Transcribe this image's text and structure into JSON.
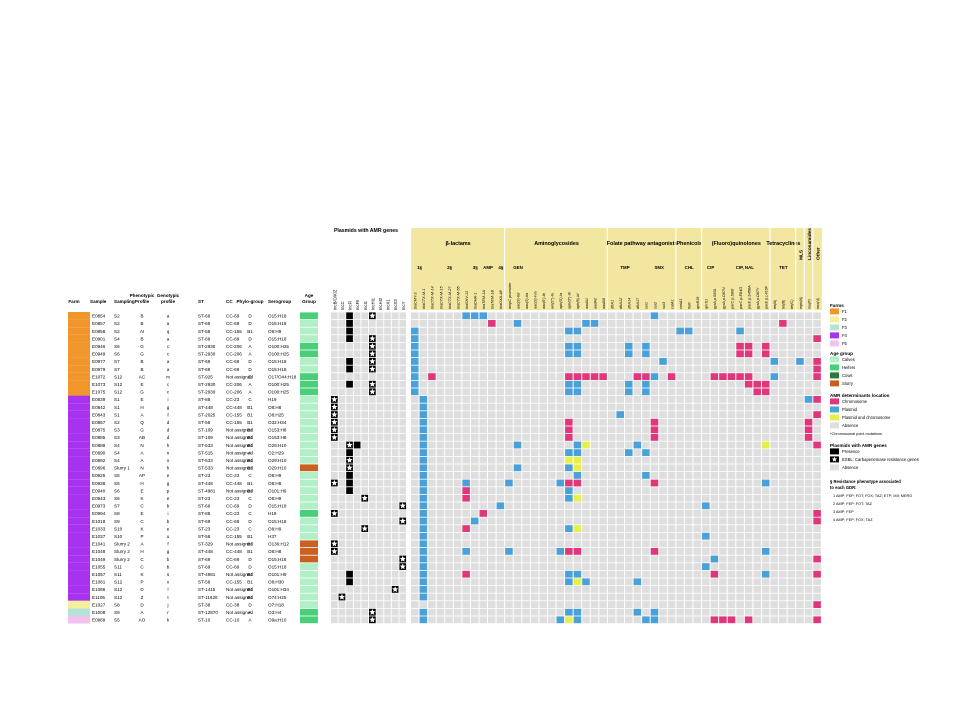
{
  "left_headers": [
    "Farm",
    "Sample",
    "Sampling",
    "Phenotypic Profile",
    "Genotypic profile",
    "ST",
    "CC",
    "Phylo-group",
    "Serogroup",
    "Age Group"
  ],
  "plasmid_header": "Plasmids with AMR genes",
  "plasmid_columns": [
    "IncB/O/K/Z",
    "IncC",
    "IncFI",
    "IncFII",
    "IncI1",
    "IncHI1",
    "IncHI2",
    "IncX1",
    "IncX3",
    "IncY"
  ],
  "class_headers": [
    {
      "label": "β-lactams",
      "cols": 11
    },
    {
      "label": "Aminoglycosides",
      "cols": 12
    },
    {
      "label": "Folate pathway antagonists",
      "cols": 8
    },
    {
      "label": "Phenicols",
      "cols": 3
    },
    {
      "label": "(Fluoro)quinolones",
      "cols": 8
    },
    {
      "label": "Tetracyclines",
      "cols": 3
    },
    {
      "label": "MLS",
      "cols": 1
    },
    {
      "label": "Lincosamides",
      "cols": 1
    },
    {
      "label": "Other",
      "cols": 1
    }
  ],
  "sub_headers": [
    {
      "label": "1§",
      "span": [
        0,
        2
      ]
    },
    {
      "label": "2§",
      "span": [
        2,
        7
      ]
    },
    {
      "label": "3§",
      "span": [
        7,
        8
      ]
    },
    {
      "label": "AMP",
      "span": [
        8,
        10
      ]
    },
    {
      "label": "4§",
      "span": [
        10,
        11
      ]
    },
    {
      "label": "GEN",
      "span": [
        11,
        14
      ]
    },
    {
      "label": "TMP",
      "span": [
        23,
        27
      ]
    },
    {
      "label": "SMX",
      "span": [
        27,
        31
      ]
    },
    {
      "label": "CHL",
      "span": [
        31,
        34
      ]
    },
    {
      "label": "CIP",
      "span": [
        34,
        36
      ]
    },
    {
      "label": "CIP, NAL",
      "span": [
        36,
        42
      ]
    },
    {
      "label": "TET",
      "span": [
        42,
        45
      ]
    }
  ],
  "gene_columns": [
    "blaCMY-2",
    "blaCTX-M-1",
    "blaCTX-M-14",
    "blaCTX-M-15",
    "blaCTX-M-27",
    "blaCTX-M-55",
    "blaSHV-12",
    "blaDHA-1",
    "blaTEM-1A",
    "blaTEM-1B",
    "blaOXA-48",
    "ampC promoter",
    "aac(3)-IId",
    "aac(3)-IIa",
    "aac(3)-IVa",
    "aac(6')-Ib",
    "ant(2'')-Ia",
    "aph(3')-Ia",
    "aph(3'')-Ib",
    "aph(6)-Id",
    "aadA1",
    "aadA2",
    "aadA5",
    "dfrA1",
    "dfrA12",
    "dfrA14",
    "dfrA17",
    "sul1",
    "sul2",
    "sul3",
    "catA1",
    "cmlA1",
    "floR",
    "qnrB19",
    "qnrS1",
    "gyrA p.S83L",
    "gyrA p.D87N",
    "parC p.S80I",
    "parC p.E84G",
    "parE p.S458A",
    "gyrA p.D87Y",
    "parE p.L416F",
    "tet(A)",
    "tet(B)",
    "tet(C)",
    "mph(A)",
    "lnu(F)",
    "mcr(4)"
  ],
  "legend": {
    "farms_title": "Farms",
    "farms": [
      {
        "label": "F1",
        "color": "#f0962a"
      },
      {
        "label": "F2",
        "color": "#f3ef9a"
      },
      {
        "label": "F3",
        "color": "#b7e3d6"
      },
      {
        "label": "F4",
        "color": "#a833ee"
      },
      {
        "label": "F5",
        "color": "#f2c3ee"
      }
    ],
    "age_title": "Age group",
    "ages": [
      {
        "label": "Calves",
        "color": "#b3efc6"
      },
      {
        "label": "Heifers",
        "color": "#49cf77"
      },
      {
        "label": "Cows",
        "color": "#2a7d38"
      },
      {
        "label": "Slurry",
        "color": "#c8611f"
      }
    ],
    "amr_title": "AMR determinants location",
    "amr": [
      {
        "label": "Chromosome",
        "color": "#e0377a"
      },
      {
        "label": "Plasmid",
        "color": "#4aa0d8"
      },
      {
        "label": "Plasmid and chromosome",
        "color": "#e6f04a"
      },
      {
        "label": "Absence",
        "color": "#dedede"
      }
    ],
    "chrom_note": "*Chromosomal point mutations",
    "plasmid_title": "Plasmids with AMR genes",
    "plasmids": [
      {
        "label": "Presence",
        "color": "#000000",
        "star": false
      },
      {
        "label": "ESBL: Carbapenemase resistance genes",
        "color": "#000000",
        "star": true
      },
      {
        "label": "Absence",
        "color": "#dedede",
        "star": false
      }
    ],
    "gdr_title": "§ Resistance phenotype associated to each GDR:",
    "gdr_items": [
      "1  AMP; FEP; FOT; FOX; TAZ; ETP; IMI; MERO",
      "2  AMP; FEP; FOT; TAZ",
      "3  AMP; FEP",
      "4  AMP; FEP; FOX; TAZ"
    ]
  },
  "colors": {
    "chromosome": "#e0377a",
    "plasmid": "#4aa0d8",
    "both": "#e6f04a",
    "absence": "#dedede",
    "header_bg": "#f3e6a1",
    "other_col": "#e0377a"
  },
  "rows": [
    {
      "farm": "F1",
      "sample": "E0854",
      "sampling": "S2",
      "pheno": "B",
      "geno": "a",
      "st": "ST-69",
      "cc": "CC-69",
      "phylo": "D",
      "sero": "O15:H18",
      "age": "Heifers",
      "plasmids": "0010010000",
      "star_col": 5,
      "genes": "000000ppp0000000000000000000p0000000000000000000"
    },
    {
      "farm": "F1",
      "sample": "E0857",
      "sampling": "S2",
      "pheno": "B",
      "geno": "a",
      "st": "ST-69",
      "cc": "CC-69",
      "phylo": "D",
      "sero": "O15:H18",
      "age": "Calves",
      "plasmids": "0010000000",
      "star_col": -1,
      "genes": "000000000c00p0000000pp000000000000000000000c0000"
    },
    {
      "farm": "F1",
      "sample": "E0858",
      "sampling": "S2",
      "pheno": "AI",
      "geno": "q",
      "st": "ST-58",
      "cc": "CC-155",
      "phylo": "B1",
      "sero": "O9:H9",
      "age": "Calves",
      "plasmids": "0010000000",
      "star_col": -1,
      "genes": "p00000000000000000pp00000000000pp00000p000000000"
    },
    {
      "farm": "F1",
      "sample": "E0901",
      "sampling": "S4",
      "pheno": "B",
      "geno": "a",
      "st": "ST-69",
      "cc": "CC-69",
      "phylo": "D",
      "sero": "O15:H18",
      "age": "Calves",
      "plasmids": "0010010000",
      "star_col": 5,
      "genes": "p0000000000000000000000000000000000000000000000c"
    },
    {
      "farm": "F1",
      "sample": "E0946",
      "sampling": "S6",
      "pheno": "G",
      "geno": "c",
      "st": "ST-2930",
      "cc": "CC-206",
      "phylo": "A",
      "sero": "O100:H25",
      "age": "Heifers",
      "plasmids": "0000010000",
      "star_col": 5,
      "genes": "p00000000000000000pp00000p0p0000000000cc0c000000"
    },
    {
      "farm": "F1",
      "sample": "E0949",
      "sampling": "S6",
      "pheno": "G",
      "geno": "c",
      "st": "ST-2930",
      "cc": "CC-206",
      "phylo": "A",
      "sero": "O100:H25",
      "age": "Heifers",
      "plasmids": "0000010000",
      "star_col": 5,
      "genes": "p00000000000000000pp00000p0p0000000000cc0c000000"
    },
    {
      "farm": "F1",
      "sample": "E0977",
      "sampling": "S7",
      "pheno": "B",
      "geno": "a",
      "st": "ST-69",
      "cc": "CC-69",
      "phylo": "D",
      "sero": "O15:H18",
      "age": "Calves",
      "plasmids": "0010010000",
      "star_col": 5,
      "genes": "p0000000000000000000000000000p000000000000p00p0c"
    },
    {
      "farm": "F1",
      "sample": "E0979",
      "sampling": "S7",
      "pheno": "B",
      "geno": "a",
      "st": "ST-69",
      "cc": "CC-69",
      "phylo": "D",
      "sero": "O15:H18",
      "age": "Calves",
      "plasmids": "0010010000",
      "star_col": 5,
      "genes": "p0000000000000000000000000000000000000000000000c"
    },
    {
      "farm": "F1",
      "sample": "E1072",
      "sampling": "S12",
      "pheno": "AC",
      "geno": "m",
      "st": "ST-925",
      "cc": "Not assigned",
      "phylo": "D",
      "sero": "O17/O44:H18",
      "age": "Heifers",
      "plasmids": "0000000000",
      "star_col": -1,
      "genes": "p0c000000000000000ccccc000ccp0c0000ccccc00p0000c"
    },
    {
      "farm": "F1",
      "sample": "E1073",
      "sampling": "S12",
      "pheno": "E",
      "geno": "c",
      "st": "ST-2930",
      "cc": "CC-206",
      "phylo": "A",
      "sero": "O100:H25",
      "age": "Heifers",
      "plasmids": "0010010000",
      "star_col": 5,
      "genes": "p00000000000000000pp00000p0p00000000000ccc000000"
    },
    {
      "farm": "F1",
      "sample": "E1075",
      "sampling": "S12",
      "pheno": "G",
      "geno": "c",
      "st": "ST-2930",
      "cc": "CC-206",
      "phylo": "A",
      "sero": "O100:H25",
      "age": "Heifers",
      "plasmids": "0000010000",
      "star_col": 5,
      "genes": "p00000000000000000pp00000p0p000000000000cc000000"
    },
    {
      "farm": "F4",
      "sample": "E0839",
      "sampling": "S1",
      "pheno": "E",
      "geno": "i",
      "st": "ST-88",
      "cc": "CC-23",
      "phylo": "C",
      "sero": "H19",
      "age": "Calves",
      "plasmids": "1000000000",
      "star_col": 0,
      "genes": "0p00000000000000000000000000000000000000000000pc"
    },
    {
      "farm": "F4",
      "sample": "E0842",
      "sampling": "S1",
      "pheno": "H",
      "geno": "g",
      "st": "ST-448",
      "cc": "CC-448",
      "phylo": "B1",
      "sero": "O8:H8",
      "age": "Calves",
      "plasmids": "1000000000",
      "star_col": 0,
      "genes": "0p0000000000000000000000000000000000000000000000"
    },
    {
      "farm": "F4",
      "sample": "E0843",
      "sampling": "S1",
      "pheno": "A",
      "geno": "f",
      "st": "ST-2025",
      "cc": "CC-155",
      "phylo": "B1",
      "sero": "O8:H25",
      "age": "Calves",
      "plasmids": "1000000000",
      "star_col": 0,
      "genes": "0p0000000000000000000000p0000000000000000000000c"
    },
    {
      "farm": "F4",
      "sample": "E0867",
      "sampling": "S2",
      "pheno": "Q",
      "geno": "d",
      "st": "ST-58",
      "cc": "CC-155",
      "phylo": "B1",
      "sero": "O32:H34",
      "age": "Calves",
      "plasmids": "1000000000",
      "star_col": 0,
      "genes": "0p0000000000000000c000000000c00000000000000000c0"
    },
    {
      "farm": "F4",
      "sample": "E0875",
      "sampling": "S3",
      "pheno": "G",
      "geno": "d",
      "st": "ST-109",
      "cc": "Not assigned",
      "phylo": "B1",
      "sero": "O153:H8",
      "age": "Calves",
      "plasmids": "1000000000",
      "star_col": 0,
      "genes": "0p0000000000000000c000000000c00000000000000000c0"
    },
    {
      "farm": "F4",
      "sample": "E0885",
      "sampling": "S3",
      "pheno": "AB",
      "geno": "d",
      "st": "ST-109",
      "cc": "Not assigned",
      "phylo": "B1",
      "sero": "O153:H8",
      "age": "Calves",
      "plasmids": "1000000000",
      "star_col": 0,
      "genes": "0p0000000000000000c000000000c00000000000000000c0"
    },
    {
      "farm": "F4",
      "sample": "E0888",
      "sampling": "S4",
      "pheno": "N",
      "geno": "h",
      "st": "ST-533",
      "cc": "Not assigned",
      "phylo": "B1",
      "sero": "O29:H10",
      "age": "Calves",
      "plasmids": "0011000000",
      "star_col": 2,
      "genes": "0p0000000000p000000pb00000p00000000000000b00000c"
    },
    {
      "farm": "F4",
      "sample": "E0890",
      "sampling": "S4",
      "pheno": "A",
      "geno": "n",
      "st": "ST-515",
      "cc": "Not assigned",
      "phylo": "A",
      "sero": "O2:H29",
      "age": "Calves",
      "plasmids": "0010000000",
      "star_col": -1,
      "genes": "0p0000000000000000pp00000p0p00000000000000000000"
    },
    {
      "farm": "F4",
      "sample": "E0892",
      "sampling": "S4",
      "pheno": "A",
      "geno": "o",
      "st": "ST-533",
      "cc": "Not assigned",
      "phylo": "B1",
      "sero": "O29:H10",
      "age": "Calves",
      "plasmids": "0010000000",
      "star_col": 2,
      "genes": "0p0000000000000000bb0000000000000000000000000000"
    },
    {
      "farm": "F4",
      "sample": "E0896",
      "sampling": "Slurry 1",
      "pheno": "N",
      "geno": "h",
      "st": "ST-533",
      "cc": "Not assigned",
      "phylo": "B1",
      "sero": "O29:H10",
      "age": "Slurry",
      "plasmids": "0010000000",
      "star_col": 2,
      "genes": "0p0000000000p00000pb0000000000000000000000000000"
    },
    {
      "farm": "F4",
      "sample": "E0925",
      "sampling": "S5",
      "pheno": "AP",
      "geno": "e",
      "st": "ST-23",
      "cc": "CC-23",
      "phylo": "C",
      "sero": "O8:H9",
      "age": "Calves",
      "plasmids": "0010000000",
      "star_col": -1,
      "genes": "0p00000000000000000p0000000p00000000000000000000"
    },
    {
      "farm": "F4",
      "sample": "E0938",
      "sampling": "S6",
      "pheno": "H",
      "geno": "g",
      "st": "ST-448",
      "cc": "CC-448",
      "phylo": "B1",
      "sero": "O8:H8",
      "age": "Calves",
      "plasmids": "1010000000",
      "star_col": 0,
      "genes": "0p0000p0000p00000pcc00000000c000000000000p000000"
    },
    {
      "farm": "F4",
      "sample": "E0940",
      "sampling": "S6",
      "pheno": "E",
      "geno": "p",
      "st": "ST-4981",
      "cc": "Not assigned",
      "phylo": "B1",
      "sero": "O101:H9",
      "age": "Calves",
      "plasmids": "0010000000",
      "star_col": -1,
      "genes": "0p0000c00000000000p00000000000000000000000000000"
    },
    {
      "farm": "F4",
      "sample": "E0943",
      "sampling": "S6",
      "pheno": "K",
      "geno": "e",
      "st": "ST-23",
      "cc": "CC-23",
      "phylo": "C",
      "sero": "O8:H9",
      "age": "Calves",
      "plasmids": "0000100000",
      "star_col": 4,
      "genes": "0p0000c00000000000pb0000000000000000000000000000"
    },
    {
      "farm": "F4",
      "sample": "E0973",
      "sampling": "S7",
      "pheno": "C",
      "geno": "b",
      "st": "ST-69",
      "cc": "CC-69",
      "phylo": "D",
      "sero": "O15:H18",
      "age": "Calves",
      "plasmids": "0000000001",
      "star_col": 9,
      "genes": "0p00000000p00000000000000000000000p0000000000000"
    },
    {
      "farm": "F4",
      "sample": "E0994",
      "sampling": "S8",
      "pheno": "E",
      "geno": "i",
      "st": "ST-88",
      "cc": "CC-23",
      "phylo": "C",
      "sero": "H19",
      "age": "Heifers",
      "plasmids": "1000000000",
      "star_col": 0,
      "genes": "0p000000c00000000000000000000000000000000000000c"
    },
    {
      "farm": "F4",
      "sample": "E1018",
      "sampling": "S9",
      "pheno": "C",
      "geno": "b",
      "st": "ST-69",
      "cc": "CC-69",
      "phylo": "D",
      "sero": "O15:H18",
      "age": "Calves",
      "plasmids": "0000000001",
      "star_col": 9,
      "genes": "0p00000p000000000000000000000000000000000000000c"
    },
    {
      "farm": "F4",
      "sample": "E1033",
      "sampling": "S10",
      "pheno": "K",
      "geno": "e",
      "st": "ST-23",
      "cc": "CC-23",
      "phylo": "C",
      "sero": "O8:H9",
      "age": "Calves",
      "plasmids": "0000100000",
      "star_col": 4,
      "genes": "0p0000c00000000000pb0000000000000000000000000000"
    },
    {
      "farm": "F4",
      "sample": "E1037",
      "sampling": "S10",
      "pheno": "P",
      "geno": "u",
      "st": "ST-58",
      "cc": "CC-155",
      "phylo": "B1",
      "sero": "H37",
      "age": "Calves",
      "plasmids": "0000000000",
      "star_col": -1,
      "genes": "0p00000000000000000000000000000000p0000000000000"
    },
    {
      "farm": "F4",
      "sample": "E1041",
      "sampling": "Slurry 2",
      "pheno": "A",
      "geno": "f",
      "st": "ST-329",
      "cc": "Not assigned",
      "phylo": "B1",
      "sero": "O136:H12",
      "age": "Slurry",
      "plasmids": "1000000000",
      "star_col": 0,
      "genes": "0p0000000000000000000000000000000000000000000000"
    },
    {
      "farm": "F4",
      "sample": "E1048",
      "sampling": "Slurry 2",
      "pheno": "H",
      "geno": "g",
      "st": "ST-448",
      "cc": "CC-448",
      "phylo": "B1",
      "sero": "O8:H8",
      "age": "Slurry",
      "plasmids": "1000000000",
      "star_col": 0,
      "genes": "0p0000p0000p00000pcc00000000c000000000000p000000"
    },
    {
      "farm": "F4",
      "sample": "E1049",
      "sampling": "Slurry 2",
      "pheno": "C",
      "geno": "b",
      "st": "ST-69",
      "cc": "CC-69",
      "phylo": "D",
      "sero": "O15:H18",
      "age": "Slurry",
      "plasmids": "0000000001",
      "star_col": 9,
      "genes": "0p000000000000000000000000000000000p00000000000c"
    },
    {
      "farm": "F4",
      "sample": "E1055",
      "sampling": "S11",
      "pheno": "C",
      "geno": "b",
      "st": "ST-69",
      "cc": "CC-69",
      "phylo": "D",
      "sero": "O15:H18",
      "age": "Calves",
      "plasmids": "0000000001",
      "star_col": 9,
      "genes": "0p00000000000000000000000000000000p0000000000000"
    },
    {
      "farm": "F4",
      "sample": "E1057",
      "sampling": "S11",
      "pheno": "K",
      "geno": "s",
      "st": "ST-4981",
      "cc": "Not assigned",
      "phylo": "B1",
      "sero": "O101:H9",
      "age": "Calves",
      "plasmids": "0010000000",
      "star_col": -1,
      "genes": "0p0000c00000000000pp000000000000000c00000p00000c"
    },
    {
      "farm": "F4",
      "sample": "E1081",
      "sampling": "S12",
      "pheno": "P",
      "geno": "v",
      "st": "ST-58",
      "cc": "CC-155",
      "phylo": "B1",
      "sero": "O8:H30",
      "age": "Calves",
      "plasmids": "0010000000",
      "star_col": -1,
      "genes": "0p0000000000000000pbp00000p000000000000000000000"
    },
    {
      "farm": "F4",
      "sample": "E1086",
      "sampling": "S12",
      "pheno": "D",
      "geno": "l",
      "st": "ST-1415",
      "cc": "Not assigned",
      "phylo": "B1",
      "sero": "O101:H34",
      "age": "Calves",
      "plasmids": "0000000010",
      "star_col": 8,
      "genes": "0p0000000000000000000000000000000000000000000000"
    },
    {
      "farm": "F4",
      "sample": "E1105",
      "sampling": "S12",
      "pheno": "Z",
      "geno": "t",
      "st": "ST-11626",
      "cc": "Not assigned",
      "phylo": "B1",
      "sero": "O74:H25",
      "age": "Calves",
      "plasmids": "0100000000",
      "star_col": 1,
      "genes": "0p0000000000000000000000000000000000000000000000"
    },
    {
      "farm": "F2",
      "sample": "E1027",
      "sampling": "S8",
      "pheno": "D",
      "geno": "j",
      "st": "ST-38",
      "cc": "CC-38",
      "phylo": "D",
      "sero": "O7:H18",
      "age": "Calves",
      "plasmids": "0000000000",
      "star_col": -1,
      "genes": "00000000000000000000000000000000000000000000000c"
    },
    {
      "farm": "F3",
      "sample": "E1008",
      "sampling": "S9",
      "pheno": "A",
      "geno": "r",
      "st": "ST-12870",
      "cc": "Not assigned",
      "phylo": "A",
      "sero": "O3:H4",
      "age": "Heifers",
      "plasmids": "0000010000",
      "star_col": 5,
      "genes": "0p0000000000000000pp000000p0p0000000000000000000"
    },
    {
      "farm": "F5",
      "sample": "E0989",
      "sampling": "S5",
      "pheno": "AO",
      "geno": "k",
      "st": "ST-10",
      "cc": "CC-10",
      "phylo": "A",
      "sero": "O9a:H10",
      "age": "Heifers",
      "plasmids": "0000010000",
      "star_col": 5,
      "genes": "0p000000000000000pbp0000000pp000000ccc0c0000000c"
    }
  ]
}
